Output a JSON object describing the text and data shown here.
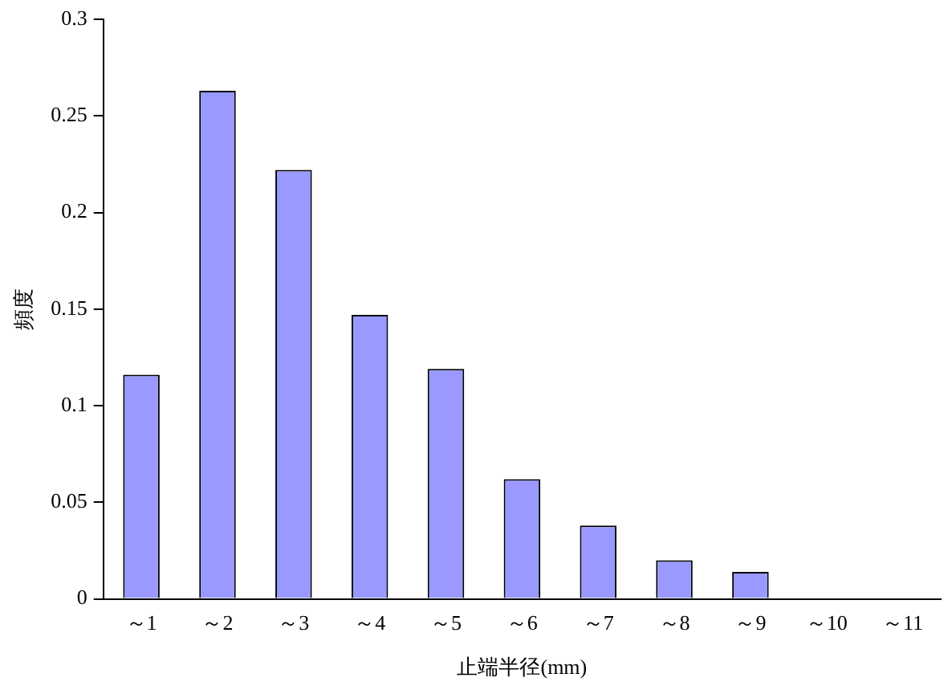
{
  "chart_data": {
    "type": "bar",
    "xlabel": "止端半径(mm)",
    "ylabel": "頻度",
    "categories": [
      "～1",
      "～2",
      "～3",
      "～4",
      "～5",
      "～6",
      "～7",
      "～8",
      "～9",
      "～10",
      "～11"
    ],
    "values": [
      0.116,
      0.263,
      0.222,
      0.147,
      0.119,
      0.062,
      0.038,
      0.02,
      0.014,
      0,
      0
    ],
    "color": "#9999ff",
    "ylim": [
      0,
      0.3
    ],
    "yticks": [
      0,
      0.05,
      0.1,
      0.15,
      0.2,
      0.25,
      0.3
    ],
    "grid": false,
    "legend": false
  }
}
